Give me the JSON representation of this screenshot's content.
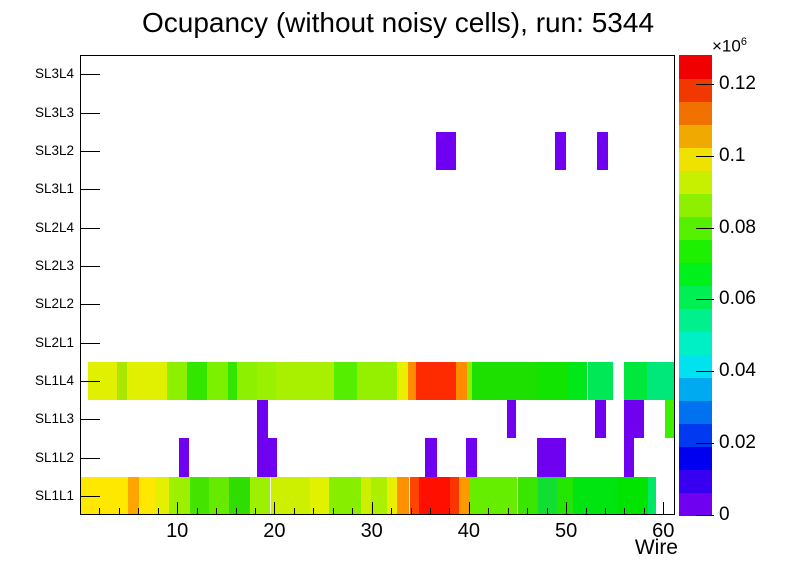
{
  "chart_data": {
    "type": "heatmap",
    "title": "Ocupancy (without noisy cells), run: 5344",
    "xlabel": "Wire",
    "xlim": [
      0,
      61.2
    ],
    "x_major_ticks": [
      10,
      20,
      30,
      40,
      50,
      60
    ],
    "x_minor_tick_step": 2,
    "zlim_e6": [
      0,
      0.128
    ],
    "grid": false,
    "background": "#ffffff",
    "value_note": "v = estimated bin content in units of 1e6, read from color scale",
    "colorbar": {
      "exponent_base": "×10",
      "exponent_power": "6",
      "tick_values": [
        0,
        0.02,
        0.04,
        0.06,
        0.08,
        0.1,
        0.12
      ],
      "tick_labels": [
        "0",
        "0.02",
        "0.04",
        "0.06",
        "0.08",
        "0.1",
        "0.12"
      ],
      "palette_bottom_to_top": [
        "#7000f0",
        "#3800f0",
        "#0000f0",
        "#0039f0",
        "#0072f0",
        "#00aaf0",
        "#00e2f0",
        "#00f0c5",
        "#00f08d",
        "#00f054",
        "#00f01c",
        "#1df000",
        "#55f000",
        "#8ef000",
        "#c6f000",
        "#f0e200",
        "#f0a900",
        "#f07100",
        "#f03800",
        "#f00000"
      ]
    },
    "rows_top_to_bottom": [
      {
        "label": "SL3L4",
        "segments": []
      },
      {
        "label": "SL3L3",
        "segments": []
      },
      {
        "label": "SL3L2",
        "segments": [
          {
            "s": 36.6,
            "e": 38.7,
            "color": "#7000f0",
            "v": 0.003
          },
          {
            "s": 48.9,
            "e": 50.0,
            "color": "#7000f0",
            "v": 0.003
          },
          {
            "s": 53.2,
            "e": 54.3,
            "color": "#7000f0",
            "v": 0.003
          }
        ]
      },
      {
        "label": "SL3L1",
        "segments": []
      },
      {
        "label": "SL2L4",
        "segments": []
      },
      {
        "label": "SL2L3",
        "segments": []
      },
      {
        "label": "SL2L2",
        "segments": []
      },
      {
        "label": "SL2L1",
        "segments": []
      },
      {
        "label": "SL1L4",
        "segments": [
          {
            "s": 0.8,
            "e": 3.8,
            "color": "#e1f000",
            "v": 0.097
          },
          {
            "s": 3.8,
            "e": 4.8,
            "color": "#abe600",
            "v": 0.092
          },
          {
            "s": 4.8,
            "e": 8.9,
            "color": "#e1f000",
            "v": 0.097
          },
          {
            "s": 8.9,
            "e": 11.0,
            "color": "#8cf000",
            "v": 0.088
          },
          {
            "s": 11.0,
            "e": 13.1,
            "color": "#33e600",
            "v": 0.077
          },
          {
            "s": 13.1,
            "e": 15.2,
            "color": "#7df000",
            "v": 0.086
          },
          {
            "s": 15.2,
            "e": 16.1,
            "color": "#33e600",
            "v": 0.077
          },
          {
            "s": 16.1,
            "e": 18.2,
            "color": "#8cf000",
            "v": 0.088
          },
          {
            "s": 18.2,
            "e": 20.2,
            "color": "#99f000",
            "v": 0.089
          },
          {
            "s": 20.2,
            "e": 26.1,
            "color": "#a8f000",
            "v": 0.091
          },
          {
            "s": 26.1,
            "e": 28.5,
            "color": "#55ee00",
            "v": 0.081
          },
          {
            "s": 28.5,
            "e": 32.6,
            "color": "#95f000",
            "v": 0.088
          },
          {
            "s": 32.6,
            "e": 33.7,
            "color": "#e8f000",
            "v": 0.098
          },
          {
            "s": 33.7,
            "e": 34.6,
            "color": "#ff8c00",
            "v": 0.112
          },
          {
            "s": 34.6,
            "e": 38.7,
            "color": "#ff2b00",
            "v": 0.123
          },
          {
            "s": 38.7,
            "e": 39.8,
            "color": "#ff8c00",
            "v": 0.112
          },
          {
            "s": 39.8,
            "e": 40.3,
            "color": "#8df000",
            "v": 0.088
          },
          {
            "s": 40.3,
            "e": 47.0,
            "color": "#1ee000",
            "v": 0.075
          },
          {
            "s": 47.0,
            "e": 50.1,
            "color": "#11e400",
            "v": 0.07
          },
          {
            "s": 50.1,
            "e": 52.2,
            "color": "#00e818",
            "v": 0.068
          },
          {
            "s": 52.2,
            "e": 54.8,
            "color": "#00e855",
            "v": 0.06
          },
          {
            "s": 56.0,
            "e": 58.3,
            "color": "#00e83c",
            "v": 0.063
          },
          {
            "s": 58.3,
            "e": 61.2,
            "color": "#00e87a",
            "v": 0.055
          }
        ]
      },
      {
        "label": "SL1L3",
        "segments": [
          {
            "s": 18.2,
            "e": 19.3,
            "color": "#7000f0",
            "v": 0.003
          },
          {
            "s": 43.9,
            "e": 44.9,
            "color": "#7000f0",
            "v": 0.003
          },
          {
            "s": 53.0,
            "e": 54.1,
            "color": "#7000f0",
            "v": 0.003
          },
          {
            "s": 56.0,
            "e": 58.0,
            "color": "#7000f0",
            "v": 0.003
          },
          {
            "s": 60.2,
            "e": 61.2,
            "color": "#3cf000",
            "v": 0.078
          }
        ]
      },
      {
        "label": "SL1L2",
        "segments": [
          {
            "s": 10.2,
            "e": 11.2,
            "color": "#7000f0",
            "v": 0.003
          },
          {
            "s": 18.2,
            "e": 20.3,
            "color": "#7000f0",
            "v": 0.003
          },
          {
            "s": 35.5,
            "e": 36.7,
            "color": "#7000f0",
            "v": 0.003
          },
          {
            "s": 39.7,
            "e": 40.8,
            "color": "#7000f0",
            "v": 0.003
          },
          {
            "s": 47.0,
            "e": 50.0,
            "color": "#7000f0",
            "v": 0.003
          },
          {
            "s": 56.0,
            "e": 57.0,
            "color": "#7000f0",
            "v": 0.003
          }
        ]
      },
      {
        "label": "SL1L1",
        "segments": [
          {
            "s": 0.0,
            "e": 4.9,
            "color": "#ffe800",
            "v": 0.102
          },
          {
            "s": 4.9,
            "e": 6.1,
            "color": "#ffa500",
            "v": 0.109
          },
          {
            "s": 6.1,
            "e": 7.7,
            "color": "#ffe800",
            "v": 0.102
          },
          {
            "s": 7.7,
            "e": 9.2,
            "color": "#e4f000",
            "v": 0.098
          },
          {
            "s": 9.2,
            "e": 11.3,
            "color": "#9cf000",
            "v": 0.09
          },
          {
            "s": 11.3,
            "e": 13.3,
            "color": "#44e400",
            "v": 0.079
          },
          {
            "s": 13.3,
            "e": 15.3,
            "color": "#66ea00",
            "v": 0.083
          },
          {
            "s": 15.3,
            "e": 17.5,
            "color": "#30dd00",
            "v": 0.077
          },
          {
            "s": 17.5,
            "e": 19.6,
            "color": "#9cf000",
            "v": 0.09
          },
          {
            "s": 19.6,
            "e": 23.7,
            "color": "#ccf000",
            "v": 0.095
          },
          {
            "s": 23.7,
            "e": 25.6,
            "color": "#e0f200",
            "v": 0.097
          },
          {
            "s": 25.6,
            "e": 28.9,
            "color": "#88ee00",
            "v": 0.087
          },
          {
            "s": 28.9,
            "e": 29.9,
            "color": "#ccf000",
            "v": 0.095
          },
          {
            "s": 29.9,
            "e": 31.6,
            "color": "#aaf000",
            "v": 0.091
          },
          {
            "s": 31.6,
            "e": 32.6,
            "color": "#e8f000",
            "v": 0.098
          },
          {
            "s": 32.6,
            "e": 33.9,
            "color": "#ff9100",
            "v": 0.112
          },
          {
            "s": 33.9,
            "e": 34.9,
            "color": "#ff4400",
            "v": 0.12
          },
          {
            "s": 34.9,
            "e": 38.1,
            "color": "#ff0f00",
            "v": 0.126
          },
          {
            "s": 38.1,
            "e": 39.0,
            "color": "#ff3300",
            "v": 0.122
          },
          {
            "s": 39.0,
            "e": 40.1,
            "color": "#ff9900",
            "v": 0.111
          },
          {
            "s": 40.1,
            "e": 45.0,
            "color": "#66ee00",
            "v": 0.083
          },
          {
            "s": 45.0,
            "e": 47.1,
            "color": "#3ae600",
            "v": 0.078
          },
          {
            "s": 47.1,
            "e": 49.1,
            "color": "#11dd33",
            "v": 0.066
          },
          {
            "s": 49.1,
            "e": 50.7,
            "color": "#22e600",
            "v": 0.075
          },
          {
            "s": 50.7,
            "e": 55.3,
            "color": "#00e410",
            "v": 0.069
          },
          {
            "s": 55.3,
            "e": 58.4,
            "color": "#00e400",
            "v": 0.071
          },
          {
            "s": 58.4,
            "e": 59.2,
            "color": "#00e866",
            "v": 0.058
          }
        ]
      }
    ]
  }
}
